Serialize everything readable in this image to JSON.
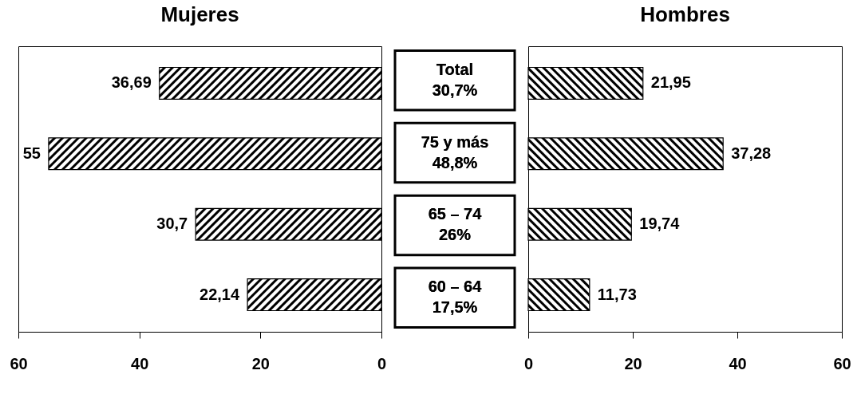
{
  "chart_data": [
    {
      "type": "bar",
      "orientation": "horizontal",
      "title": "Mujeres",
      "categories": [
        "Total\n30,7%",
        "75 y más\n48,8%",
        "65 – 74\n26%",
        "60 – 64\n17,5%"
      ],
      "series": [
        {
          "color": "#000000",
          "values": [
            36.69,
            55,
            30.7,
            22.14
          ]
        }
      ],
      "value_labels": [
        "36,69",
        "55",
        "30,7",
        "22,14"
      ],
      "xlim": [
        60,
        0
      ],
      "xticks": [
        60,
        40,
        20,
        0
      ],
      "tick_labels": "x",
      "grid": false
    },
    {
      "type": "bar",
      "orientation": "horizontal",
      "title": "Hombres",
      "categories": [
        "Total\n30,7%",
        "75 y más\n48,8%",
        "65 – 74\n26%",
        "60 – 64\n17,5%"
      ],
      "series": [
        {
          "color": "#000000",
          "values": [
            21.95,
            37.28,
            19.74,
            11.73
          ]
        }
      ],
      "value_labels": [
        "21,95",
        "37,28",
        "19,74",
        "11,73"
      ],
      "xlim": [
        0,
        60
      ],
      "xticks": [
        0,
        20,
        40,
        60
      ],
      "grid": false
    }
  ]
}
